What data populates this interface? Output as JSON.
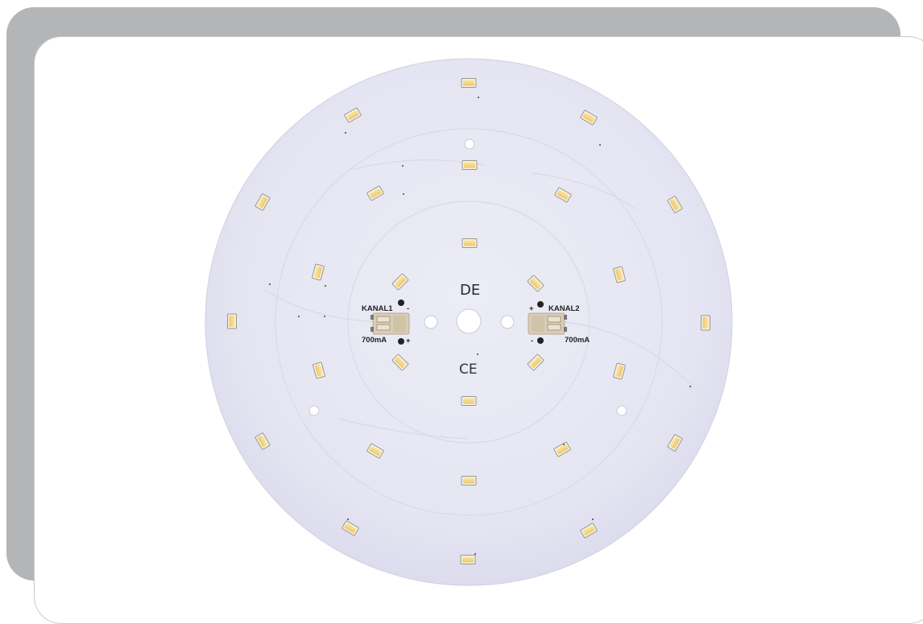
{
  "board": {
    "markings": {
      "logo_text": "DE",
      "certification_mark": "CE"
    },
    "channel_1": {
      "label": "KANAL1",
      "current": "700mA",
      "negative_symbol": "-",
      "positive_symbol": "+"
    },
    "channel_2": {
      "label": "KANAL2",
      "current": "700mA",
      "negative_symbol": "-",
      "positive_symbol": "+"
    }
  },
  "colors": {
    "frame_gray": "#b4b5b7",
    "pcb_white": "#e7e7f3",
    "led_yellow": "#f3d27a",
    "connector_beige": "#d7cdb8"
  }
}
